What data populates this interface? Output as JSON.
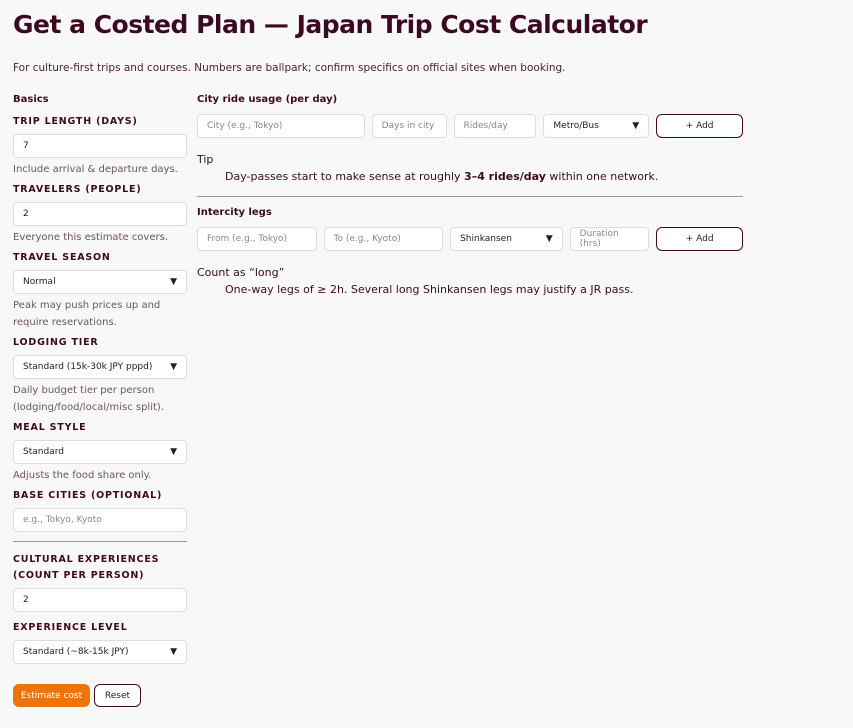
{
  "title": "Get a Costed Plan — Japan Trip Cost Calculator",
  "intro": "For culture-first trips and courses. Numbers are ballpark; confirm specifics on official sites when booking.",
  "basics": {
    "heading": "Basics",
    "trip_length": {
      "label": "TRIP LENGTH (DAYS)",
      "value": "7",
      "hint": "Include arrival & departure days."
    },
    "travelers": {
      "label": "TRAVELERS (PEOPLE)",
      "value": "2",
      "hint": "Everyone this estimate covers."
    },
    "season": {
      "label": "TRAVEL SEASON",
      "value": "Normal",
      "hint": "Peak may push prices up and require reservations."
    },
    "lodging": {
      "label": "LODGING TIER",
      "value": "Standard (15k-30k JPY pppd)",
      "hint": "Daily budget tier per person (lodging/food/local/misc split)."
    },
    "meal": {
      "label": "MEAL STYLE",
      "value": "Standard",
      "hint": "Adjusts the food share only."
    },
    "cities": {
      "label": "BASE CITIES (OPTIONAL)",
      "placeholder": "e.g., Tokyo, Kyoto"
    },
    "experiences": {
      "label": "CULTURAL EXPERIENCES (COUNT PER PERSON)",
      "value": "2"
    },
    "experience_level": {
      "label": "EXPERIENCE LEVEL",
      "value": "Standard (~8k-15k JPY)"
    },
    "estimate_label": "Estimate cost",
    "reset_label": "Reset"
  },
  "city_rides": {
    "heading": "City ride usage (per day)",
    "city_placeholder": "City (e.g., Tokyo)",
    "days_placeholder": "Days in city",
    "rides_placeholder": "Rides/day",
    "mode_value": "Metro/Bus",
    "add_label": "+ Add",
    "tip_term": "Tip",
    "tip_pre": "Day-passes start to make sense at roughly ",
    "tip_bold": "3–4 rides/day",
    "tip_post": " within one network."
  },
  "intercity": {
    "heading": "Intercity legs",
    "from_placeholder": "From (e.g., Tokyo)",
    "to_placeholder": "To (e.g., Kyoto)",
    "mode_value": "Shinkansen",
    "duration_placeholder": "Duration (hrs)",
    "add_label": "+ Add",
    "note_term": "Count as “long”",
    "note_text": "One-way legs of ≥ 2h. Several long Shinkansen legs may justify a JR pass."
  },
  "colors": {
    "brand": "#3b0a20",
    "accent": "#ec7409"
  }
}
